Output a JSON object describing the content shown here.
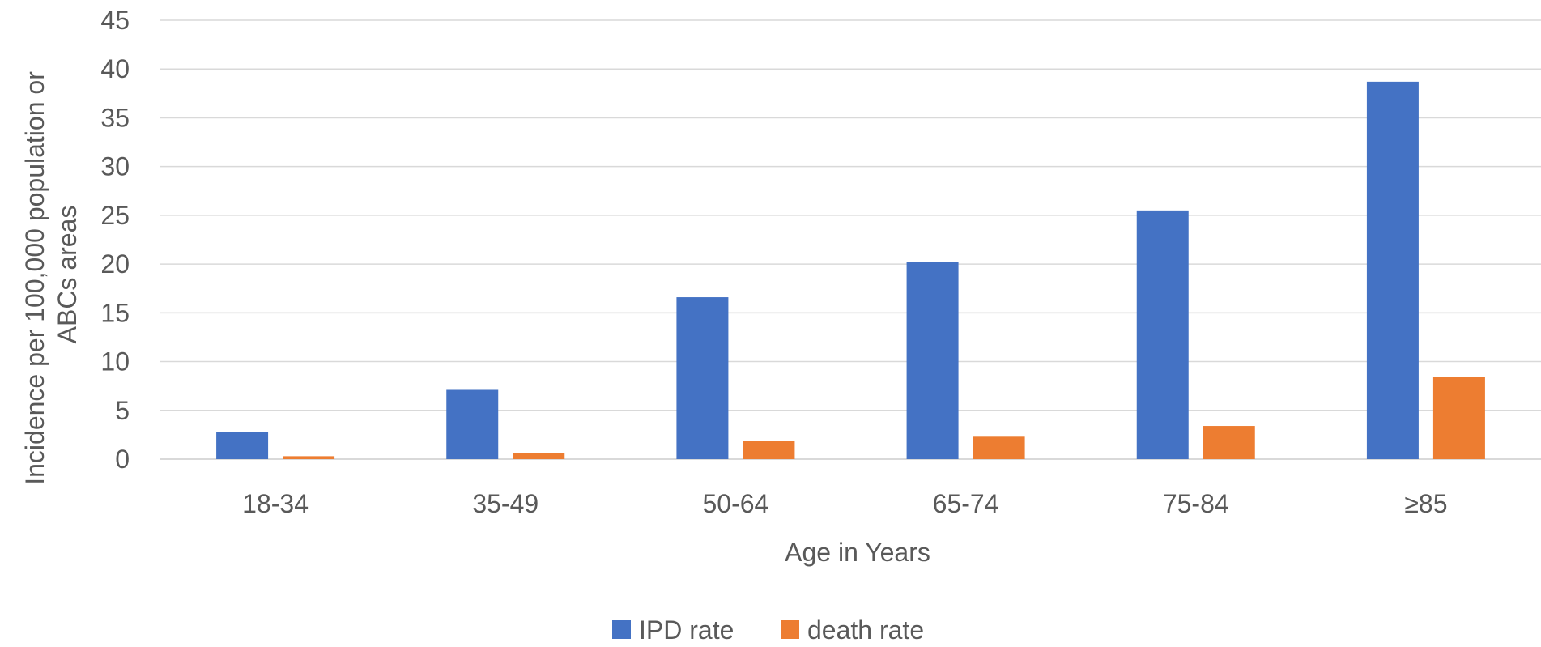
{
  "chart_data": {
    "type": "bar",
    "title": "",
    "categories": [
      "18-34",
      "35-49",
      "50-64",
      "65-74",
      "75-84",
      "≥85"
    ],
    "series": [
      {
        "name": "IPD rate",
        "color": "#4472C4",
        "values": [
          2.8,
          7.1,
          16.6,
          20.2,
          25.5,
          38.7
        ]
      },
      {
        "name": "death rate",
        "color": "#ED7D31",
        "values": [
          0.3,
          0.6,
          1.9,
          2.3,
          3.4,
          8.4
        ]
      }
    ],
    "xlabel": "Age in Years",
    "ylabel_lines": [
      "Incidence per 100,000 population or",
      "ABCs areas"
    ],
    "ylim": [
      0,
      45
    ],
    "yticks": [
      0,
      5,
      10,
      15,
      20,
      25,
      30,
      35,
      40,
      45
    ],
    "grid": true,
    "gridline_color": "#D9D9D9",
    "legend_position": "bottom"
  }
}
